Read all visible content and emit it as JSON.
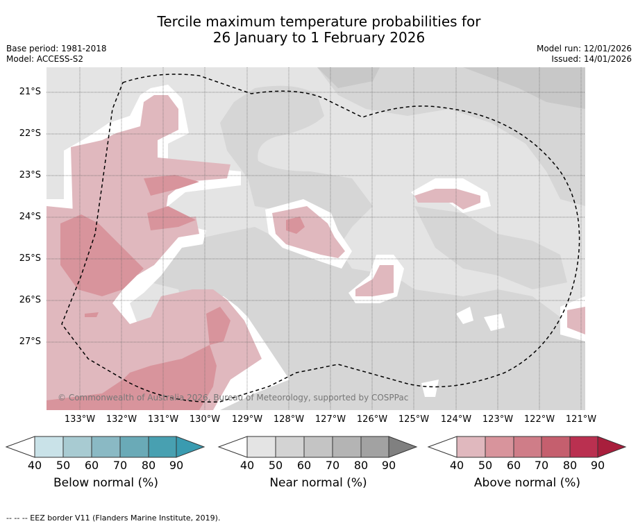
{
  "title_line1": "Tercile maximum temperature probabilities for",
  "title_line2": "26 January to 1 February 2026",
  "base_period": "Base period: 1981-2018",
  "model": "Model: ACCESS-S2",
  "model_run": "Model run: 12/01/2026",
  "issued": "Issued: 14/01/2026",
  "copyright": "© Commonwealth of Australia 2026, Bureau of Meteorology, supported by COSPPac",
  "lat_labels": [
    "21°S",
    "22°S",
    "23°S",
    "24°S",
    "25°S",
    "26°S",
    "27°S"
  ],
  "lon_labels": [
    "133°W",
    "132°W",
    "131°W",
    "130°W",
    "129°W",
    "128°W",
    "127°W",
    "126°W",
    "125°W",
    "124°W",
    "123°W",
    "122°W",
    "121°W"
  ],
  "colorbars": [
    {
      "label": "Below normal (%)",
      "ticks": [
        "40",
        "50",
        "60",
        "70",
        "80",
        "90"
      ],
      "colors": [
        "#c9e2e8",
        "#a8cbd2",
        "#8ab9c4",
        "#6aaab7",
        "#48a0b1",
        "#3a9bb0"
      ]
    },
    {
      "label": "Near normal (%)",
      "ticks": [
        "40",
        "50",
        "60",
        "70",
        "80",
        "90"
      ],
      "colors": [
        "#e4e4e4",
        "#d3d3d3",
        "#c4c4c4",
        "#b4b4b4",
        "#a2a2a2",
        "#808080"
      ]
    },
    {
      "label": "Above normal (%)",
      "ticks": [
        "40",
        "50",
        "60",
        "70",
        "80",
        "90"
      ],
      "colors": [
        "#e0b8be",
        "#d8949c",
        "#cf7d88",
        "#c55f6e",
        "#ba3050",
        "#a81e3c"
      ]
    }
  ],
  "footnote": "--  --  -- EEZ border V11 (Flanders Marine Institute, 2019)."
}
